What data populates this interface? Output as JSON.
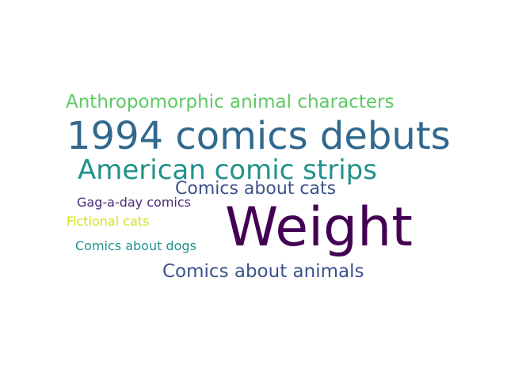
{
  "word_cloud": {
    "words": [
      {
        "text": "Anthropomorphic animal characters",
        "color": "#5ec962"
      },
      {
        "text": "1994 comics debuts",
        "color": "#31688e"
      },
      {
        "text": "American comic strips",
        "color": "#21918c"
      },
      {
        "text": "Comics about cats",
        "color": "#3b528b"
      },
      {
        "text": "Gag-a-day comics",
        "color": "#472d7b"
      },
      {
        "text": "Weight",
        "color": "#440154"
      },
      {
        "text": "Fictional cats",
        "color": "#d5e21a"
      },
      {
        "text": "Comics about dogs",
        "color": "#21918c"
      },
      {
        "text": "Comics about animals",
        "color": "#3b528b"
      }
    ]
  }
}
